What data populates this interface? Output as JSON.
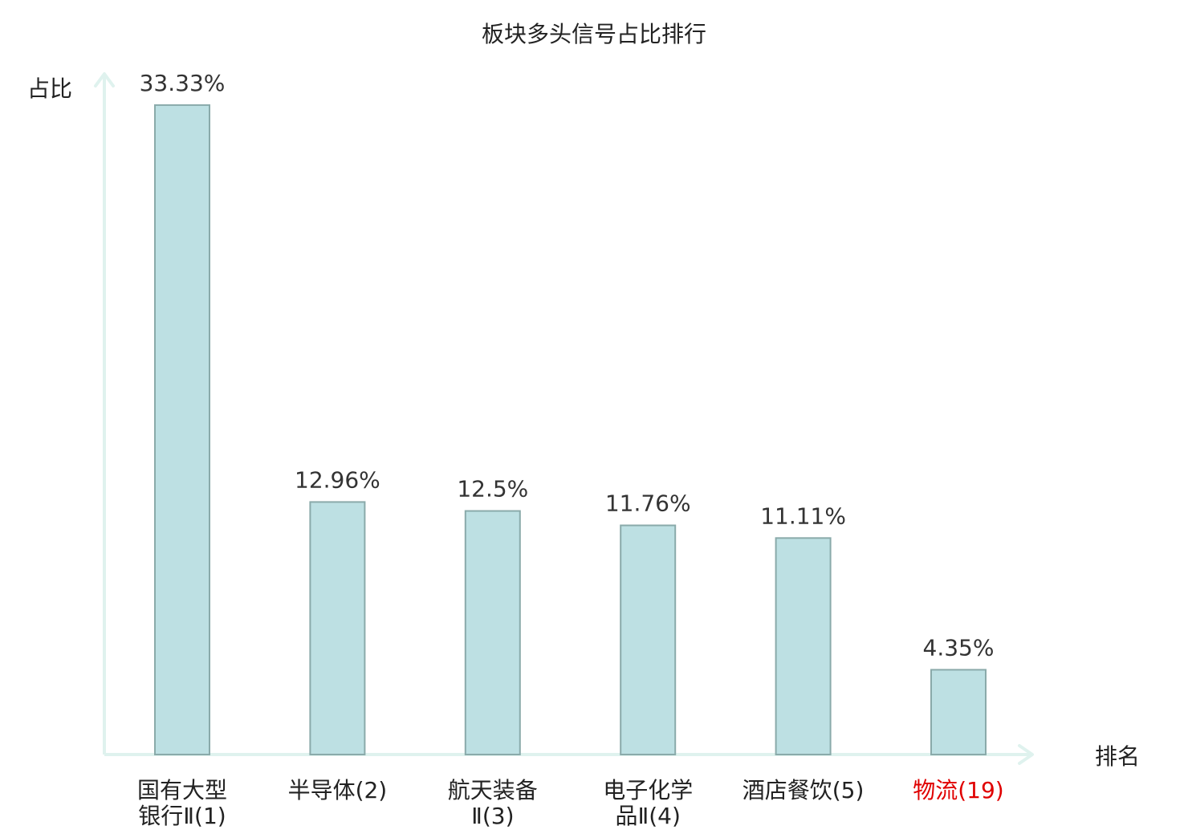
{
  "chart_data": {
    "type": "bar",
    "title": "板块多头信号占比排行",
    "ylabel": "占比",
    "xlabel": "排名",
    "categories": [
      {
        "lines": [
          "国有大型",
          "银行Ⅱ(1)"
        ],
        "highlight": false
      },
      {
        "lines": [
          "半导体(2)"
        ],
        "highlight": false
      },
      {
        "lines": [
          "航天装备",
          "Ⅱ(3)"
        ],
        "highlight": false
      },
      {
        "lines": [
          "电子化学",
          "品Ⅱ(4)"
        ],
        "highlight": false
      },
      {
        "lines": [
          "酒店餐饮(5)"
        ],
        "highlight": false
      },
      {
        "lines": [
          "物流(19)"
        ],
        "highlight": true
      }
    ],
    "values": [
      33.33,
      12.96,
      12.5,
      11.76,
      11.11,
      4.35
    ],
    "value_labels": [
      "33.33%",
      "12.96%",
      "12.5%",
      "11.76%",
      "11.11%",
      "4.35%"
    ],
    "ylim": [
      0,
      35
    ],
    "grid": false,
    "colors": {
      "bar_fill": "#bde0e3",
      "bar_stroke": "#8aaaaa",
      "axis": "#dff2ee",
      "text": "#222222",
      "value_text": "#333333",
      "highlight": "#e00000"
    }
  }
}
